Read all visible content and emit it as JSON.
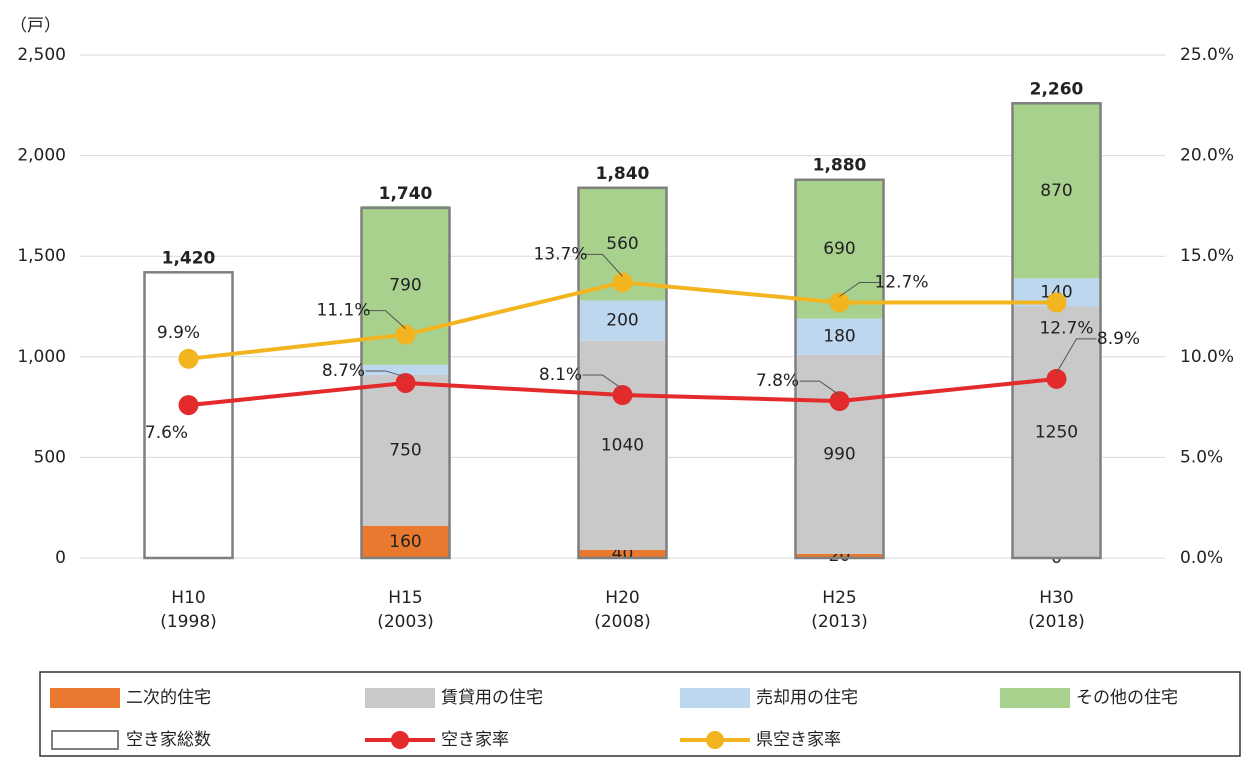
{
  "chart_data": {
    "type": "bar",
    "y_unit_label": "（戸）",
    "categories": [
      [
        "H10",
        "(1998)"
      ],
      [
        "H15",
        "(2003)"
      ],
      [
        "H20",
        "(2008)"
      ],
      [
        "H25",
        "(2013)"
      ],
      [
        "H30",
        "(2018)"
      ]
    ],
    "series": [
      {
        "name": "二次的住宅",
        "color": "#e8792e",
        "values": [
          null,
          160,
          40,
          20,
          0
        ]
      },
      {
        "name": "賃貸用の住宅",
        "color": "#c9c9c9",
        "values": [
          null,
          750,
          1040,
          990,
          1250
        ]
      },
      {
        "name": "売却用の住宅",
        "color": "#bdd7ee",
        "values": [
          null,
          50,
          200,
          180,
          140
        ]
      },
      {
        "name": "その他の住宅",
        "color": "#a9d18e",
        "values": [
          null,
          790,
          560,
          690,
          870
        ]
      }
    ],
    "total": {
      "name": "空き家総数",
      "color": "#7f7f7f",
      "values": [
        1420,
        1740,
        1840,
        1880,
        2260
      ],
      "value_labels": [
        "1,420",
        "1,740",
        "1,840",
        "1,880",
        "2,260"
      ]
    },
    "lines": [
      {
        "name": "空き家率",
        "color": "#e32b2b",
        "axis": "y2",
        "values": [
          7.6,
          8.7,
          8.1,
          7.8,
          8.9
        ],
        "value_labels": [
          "7.6%",
          "8.7%",
          "8.1%",
          "7.8%",
          "8.9%"
        ]
      },
      {
        "name": "県空き家率",
        "color": "#f2b51f",
        "label_color": "#c89414",
        "axis": "y2",
        "values": [
          9.9,
          11.1,
          13.7,
          12.7,
          12.7
        ],
        "value_labels": [
          "9.9%",
          "11.1%",
          "13.7%",
          "12.7%",
          "12.7%"
        ]
      }
    ],
    "ylim": [
      0,
      2500
    ],
    "yticks": [
      0,
      500,
      {
        "value": 1000,
        "label": "1,000"
      },
      {
        "value": 1500,
        "label": "1,500"
      },
      {
        "value": 2000,
        "label": "2,000"
      },
      {
        "value": 2500,
        "label": "2,500"
      }
    ],
    "y2lim": [
      0,
      25
    ],
    "y2ticks": [
      {
        "value": 0,
        "label": "0.0%"
      },
      {
        "value": 5,
        "label": "5.0%"
      },
      {
        "value": 10,
        "label": "10.0%"
      },
      {
        "value": 15,
        "label": "15.0%"
      },
      {
        "value": 20,
        "label": "20.0%"
      },
      {
        "value": 25,
        "label": "25.0%"
      }
    ],
    "grid": true
  }
}
